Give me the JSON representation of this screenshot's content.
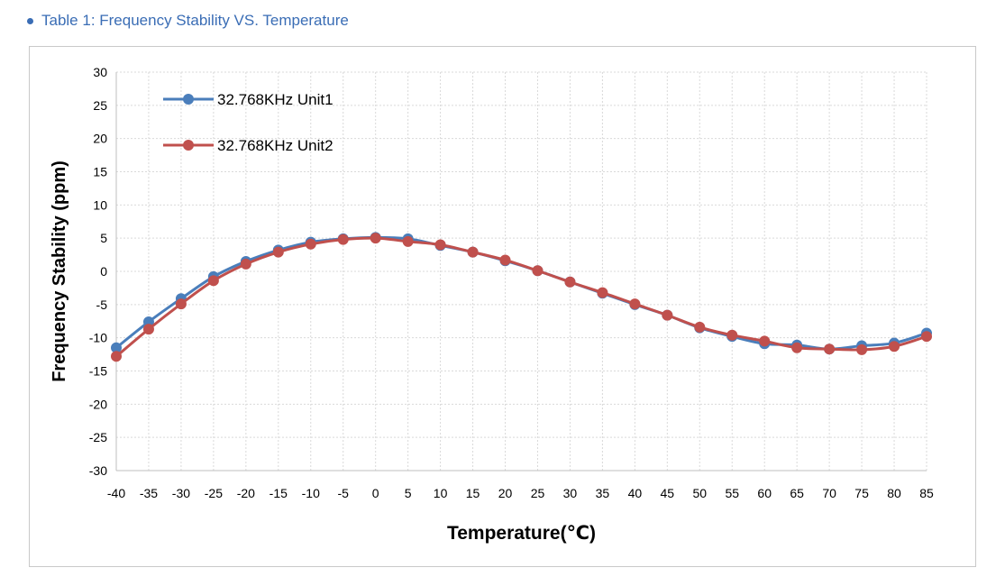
{
  "caption": "Table 1:  Frequency  Stability VS. Temperature",
  "colors": {
    "unit1": "#4a7ebb",
    "unit2": "#c0504d",
    "caption": "#3a6db5"
  },
  "chart_data": {
    "type": "line",
    "title": "",
    "xlabel": "Temperature(℃)",
    "ylabel": "Frequency Stability (ppm)",
    "x": [
      -40,
      -35,
      -30,
      -25,
      -20,
      -15,
      -10,
      -5,
      0,
      5,
      10,
      15,
      20,
      25,
      30,
      35,
      40,
      45,
      50,
      55,
      60,
      65,
      70,
      75,
      80,
      85
    ],
    "xlim": [
      -40,
      85
    ],
    "ylim": [
      -30,
      30
    ],
    "xticks": [
      -40,
      -35,
      -30,
      -25,
      -20,
      -15,
      -10,
      -5,
      0,
      5,
      10,
      15,
      20,
      25,
      30,
      35,
      40,
      45,
      50,
      55,
      60,
      65,
      70,
      75,
      80,
      85
    ],
    "yticks": [
      30,
      25,
      20,
      15,
      10,
      5,
      0,
      -5,
      -10,
      -15,
      -20,
      -25,
      -30
    ],
    "grid": true,
    "legend_position": "top-left",
    "series": [
      {
        "name": "32.768KHz Unit1",
        "values": [
          -11.5,
          -7.6,
          -4.1,
          -0.8,
          1.5,
          3.2,
          4.4,
          4.9,
          5.1,
          4.9,
          3.9,
          2.9,
          1.6,
          0.1,
          -1.6,
          -3.3,
          -5.0,
          -6.6,
          -8.5,
          -9.8,
          -10.9,
          -11.1,
          -11.7,
          -11.2,
          -10.8,
          -9.3
        ]
      },
      {
        "name": "32.768KHz Unit2",
        "values": [
          -12.8,
          -8.7,
          -4.9,
          -1.4,
          1.1,
          2.9,
          4.1,
          4.8,
          5.0,
          4.5,
          4.0,
          2.9,
          1.7,
          0.1,
          -1.6,
          -3.2,
          -4.9,
          -6.6,
          -8.4,
          -9.6,
          -10.5,
          -11.5,
          -11.7,
          -11.8,
          -11.3,
          -9.8
        ]
      }
    ]
  }
}
